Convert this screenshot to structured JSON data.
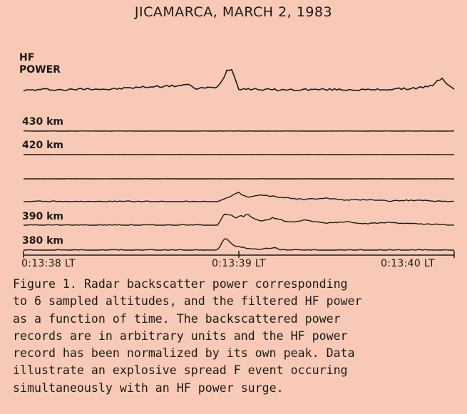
{
  "figure": {
    "title": "JICAMARCA, MARCH 2, 1983",
    "hf_label_line1": "HF",
    "hf_label_line2": "POWER"
  },
  "chart_data": {
    "type": "line",
    "title": "JICAMARCA, MARCH 2, 1983",
    "xlabel": "",
    "ylabel": "",
    "x_ticks": [
      "0:13:38 LT",
      "0:13:39 LT",
      "0:13:40 LT"
    ],
    "series": [
      {
        "name": "HF POWER",
        "x": [
          0,
          0.05,
          0.1,
          0.15,
          0.2,
          0.25,
          0.3,
          0.35,
          0.38,
          0.4,
          0.45,
          0.48,
          0.5,
          0.55,
          0.6,
          0.7,
          0.8,
          0.9,
          0.95,
          0.97,
          1.0
        ],
        "values": [
          0.08,
          0.12,
          0.1,
          0.15,
          0.12,
          0.18,
          0.22,
          0.25,
          0.3,
          0.15,
          0.2,
          1.0,
          0.15,
          0.12,
          0.1,
          0.12,
          0.1,
          0.15,
          0.25,
          0.55,
          0.1
        ]
      },
      {
        "name": "430 km",
        "x": [
          0,
          1.0
        ],
        "values": [
          0.02,
          0.02
        ]
      },
      {
        "name": "420 km",
        "x": [
          0,
          1.0
        ],
        "values": [
          0.02,
          0.02
        ]
      },
      {
        "name": "",
        "x": [
          0,
          1.0
        ],
        "values": [
          0.0,
          0.0
        ]
      },
      {
        "name": "",
        "x": [
          0,
          0.45,
          0.48,
          0.5,
          0.52,
          0.55,
          0.6,
          0.65,
          0.7,
          0.75,
          0.8,
          0.85,
          0.9,
          1.0
        ],
        "values": [
          0.0,
          0.0,
          0.35,
          0.6,
          0.3,
          0.45,
          0.3,
          0.15,
          0.25,
          0.1,
          0.15,
          0.05,
          0.1,
          0.0
        ]
      },
      {
        "name": "390 km",
        "x": [
          0,
          0.45,
          0.47,
          0.49,
          0.52,
          0.55,
          0.58,
          0.62,
          0.65,
          0.7,
          0.75,
          0.8,
          0.85,
          0.9,
          1.0
        ],
        "values": [
          0.0,
          0.0,
          0.9,
          0.5,
          0.7,
          0.3,
          0.5,
          0.2,
          0.35,
          0.15,
          0.25,
          0.1,
          0.2,
          0.1,
          0.0
        ]
      },
      {
        "name": "380 km",
        "x": [
          0,
          0.45,
          0.47,
          0.49,
          0.52,
          0.55,
          0.58,
          0.6,
          1.0
        ],
        "values": [
          0.0,
          0.0,
          1.0,
          0.3,
          0.15,
          0.05,
          0.2,
          0.0,
          0.0
        ]
      }
    ]
  },
  "caption": {
    "text": "Figure 1. Radar backscatter power corresponding\nto 6 sampled altitudes, and the filtered HF power\nas a function of time.  The backscattered power\nrecords are in arbitrary units and the HF power\nrecord has been normalized by its own peak.  Data\nillustrate an explosive spread F event occuring\nsimultaneously with an HF power surge."
  }
}
